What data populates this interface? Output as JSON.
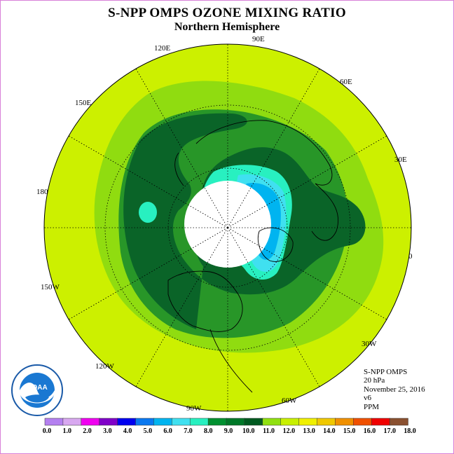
{
  "title": "S-NPP OMPS OZONE MIXING RATIO",
  "subtitle": "Northern Hemisphere",
  "longitude_labels": {
    "lon_90e": "90E",
    "lon_60e": "60E",
    "lon_30e": "30E",
    "lon_0": "0",
    "lon_30w": "30W",
    "lon_60w": "60W",
    "lon_90w": "90W",
    "lon_120w": "120W",
    "lon_150w": "150W",
    "lon_180": "180",
    "lon_150e": "150E",
    "lon_120e": "120E"
  },
  "info": {
    "instrument": "S-NPP OMPS",
    "level": "20 hPa",
    "date": "November 25, 2016",
    "version": "v6",
    "units": "PPM"
  },
  "logo_text": "NOAA",
  "colorbar": {
    "labels": [
      "0.0",
      "1.0",
      "2.0",
      "3.0",
      "4.0",
      "5.0",
      "6.0",
      "7.0",
      "8.0",
      "9.0",
      "10.0",
      "11.0",
      "12.0",
      "13.0",
      "14.0",
      "15.0",
      "16.0",
      "17.0",
      "18.0"
    ],
    "colors": [
      "#b480f0",
      "#d8a8f0",
      "#f000f0",
      "#8000c8",
      "#0000f0",
      "#0a78f0",
      "#00b4f0",
      "#40e0f0",
      "#28f0c0",
      "#009030",
      "#007828",
      "#005a20",
      "#90e010",
      "#c8f000",
      "#f0f000",
      "#f0c800",
      "#f09000",
      "#f05000",
      "#f00000",
      "#8a5030"
    ]
  },
  "map_colors": {
    "ocean_base": "#ccf000",
    "light_green": "#90dc10",
    "mid_green": "#289628",
    "dark_green": "#0a6428",
    "aqua": "#28f0c0",
    "cyan": "#40e0f0",
    "blue": "#00b4f0",
    "pole_mask": "#ffffff"
  }
}
